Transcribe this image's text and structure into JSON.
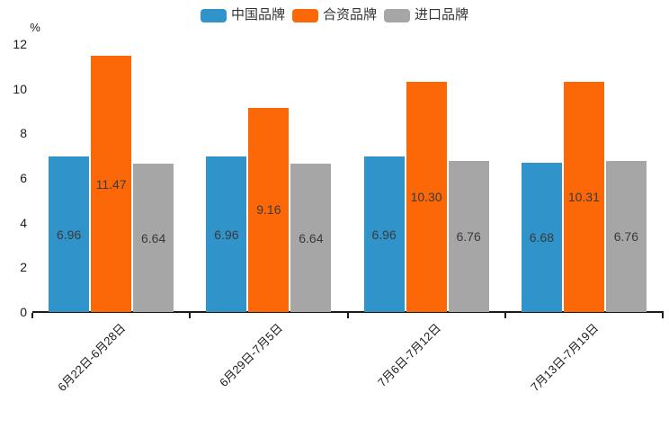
{
  "chart_data": {
    "type": "bar",
    "title": "",
    "y_unit": "%",
    "ylim": [
      0,
      12
    ],
    "yticks": [
      0,
      2,
      4,
      6,
      8,
      10,
      12
    ],
    "grid": false,
    "legend_position": "top-center",
    "value_label_decimals": 2,
    "categories": [
      "6月22日-6月28日",
      "6月29日-7月5日",
      "7月6日-7月12日",
      "7月13日-7月19日"
    ],
    "series": [
      {
        "name": "中国品牌",
        "color": "#3094cb",
        "values": [
          6.96,
          6.96,
          6.96,
          6.68
        ]
      },
      {
        "name": "合资品牌",
        "color": "#fc6708",
        "values": [
          11.47,
          9.16,
          10.3,
          10.31
        ]
      },
      {
        "name": "进口品牌",
        "color": "#a6a6a6",
        "values": [
          6.64,
          6.64,
          6.76,
          6.76
        ]
      }
    ]
  }
}
